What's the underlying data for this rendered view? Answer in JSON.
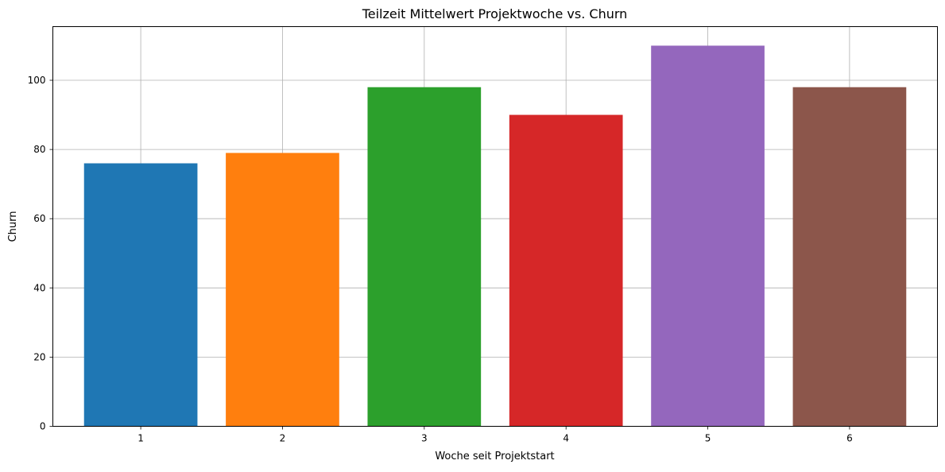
{
  "chart_data": {
    "type": "bar",
    "title": "Teilzeit Mittelwert Projektwoche vs. Churn",
    "xlabel": "Woche seit Projektstart",
    "ylabel": "Churn",
    "categories": [
      "1",
      "2",
      "3",
      "4",
      "5",
      "6"
    ],
    "values": [
      76,
      79,
      98,
      90,
      110,
      98
    ],
    "colors": [
      "#1f77b4",
      "#ff7f0e",
      "#2ca02c",
      "#d62728",
      "#9467bd",
      "#8c564b"
    ],
    "ylim": [
      0,
      115.5
    ],
    "yticks": [
      0,
      20,
      40,
      60,
      80,
      100
    ],
    "grid": true,
    "legend": false
  }
}
